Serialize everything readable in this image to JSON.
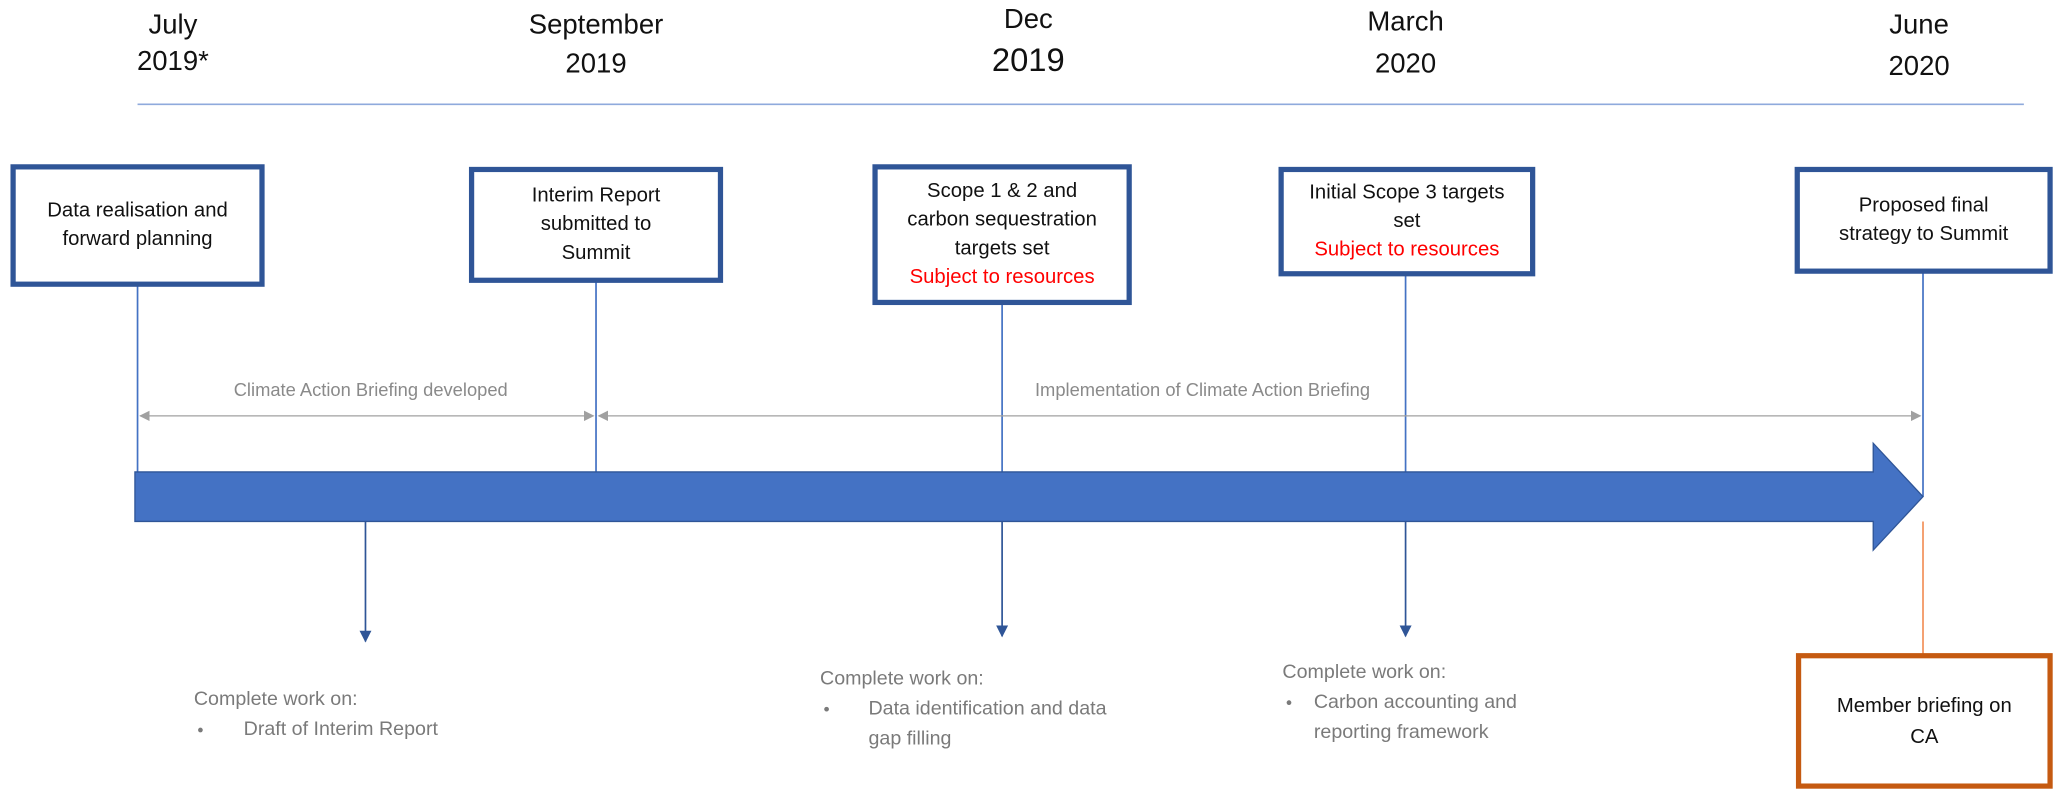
{
  "dates": [
    {
      "lines": [
        "July",
        "2019*"
      ]
    },
    {
      "lines": [
        "September",
        "2019"
      ]
    },
    {
      "lines": [
        "Dec",
        "2019"
      ]
    },
    {
      "lines": [
        "March",
        "2020"
      ]
    },
    {
      "lines": [
        "June",
        "2020"
      ]
    }
  ],
  "boxes": [
    {
      "lines": [
        "Data realisation and",
        "forward planning"
      ]
    },
    {
      "lines": [
        "Interim Report",
        "submitted to",
        "Summit"
      ]
    },
    {
      "lines": [
        "Scope 1 & 2 and",
        "carbon sequestration",
        "targets set"
      ],
      "caveat": "Subject to resources"
    },
    {
      "lines": [
        "Initial Scope 3 targets",
        "set"
      ],
      "caveat": "Subject to resources"
    },
    {
      "lines": [
        "Proposed final",
        "strategy to Summit"
      ]
    }
  ],
  "spans": [
    {
      "label": "Climate Action Briefing developed"
    },
    {
      "label": "Implementation of Climate Action Briefing"
    }
  ],
  "notes": [
    {
      "heading": "Complete work on:",
      "item": [
        "Draft of Interim Report"
      ]
    },
    {
      "heading": "Complete work on:",
      "item": [
        "Data identification and data",
        "gap filling"
      ]
    },
    {
      "heading": "Complete work on:",
      "item": [
        "Carbon accounting and",
        "reporting framework"
      ]
    }
  ],
  "member_box": {
    "lines": [
      "Member briefing on",
      "CA"
    ]
  }
}
